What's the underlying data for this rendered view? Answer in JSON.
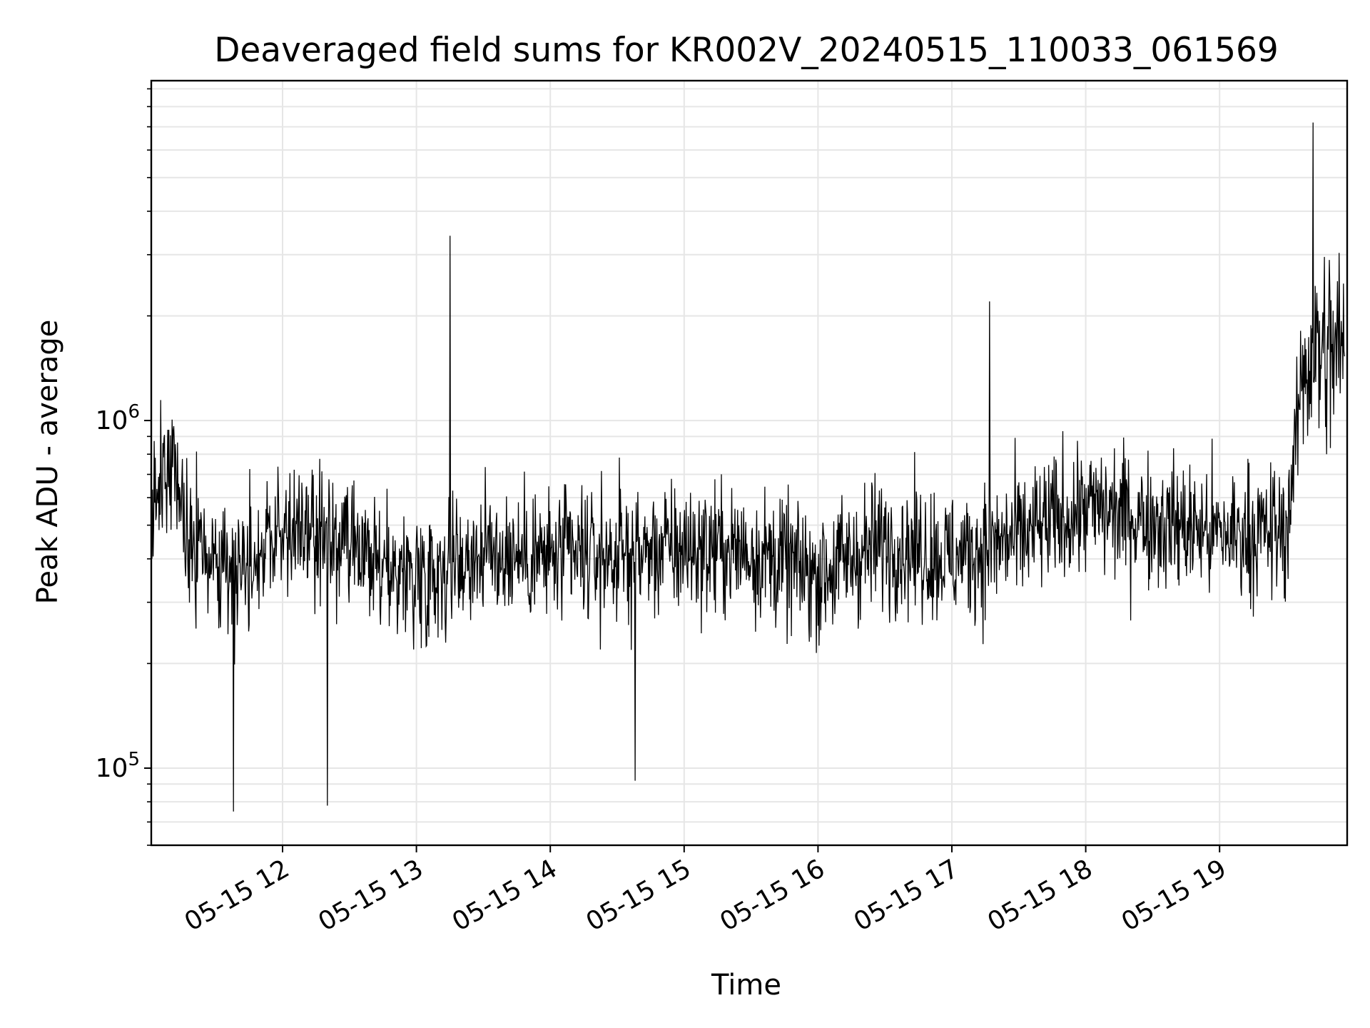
{
  "chart_data": {
    "type": "line",
    "title": "Deaveraged field sums for KR002V_20240515_110033_061569",
    "xlabel": "Time",
    "ylabel": "Peak ADU - average",
    "x_tick_labels": [
      "05-15 12",
      "05-15 13",
      "05-15 14",
      "05-15 15",
      "05-15 16",
      "05-15 17",
      "05-15 18",
      "05-15 19"
    ],
    "y_tick_labels": [
      {
        "base": "10",
        "exp": "5",
        "value": 100000
      },
      {
        "base": "10",
        "exp": "6",
        "value": 1000000
      }
    ],
    "yscale": "log",
    "ylim": [
      60000,
      9500000
    ],
    "xlim": [
      "2024-05-15 11:01",
      "2024-05-15 19:56"
    ],
    "grid": true,
    "line_color": "#000000",
    "series": [
      {
        "time_start": "2024-05-15 11:01",
        "time_end": "2024-05-15 19:56",
        "sample_count": 2200,
        "trend_samples": [
          {
            "time": "2024-05-15 11:01",
            "value": 600000
          },
          {
            "time": "2024-05-15 11:10",
            "value": 750000
          },
          {
            "time": "2024-05-15 11:20",
            "value": 420000
          },
          {
            "time": "2024-05-15 11:40",
            "value": 380000
          },
          {
            "time": "2024-05-15 12:00",
            "value": 480000
          },
          {
            "time": "2024-05-15 12:20",
            "value": 450000
          },
          {
            "time": "2024-05-15 12:40",
            "value": 380000
          },
          {
            "time": "2024-05-15 13:00",
            "value": 360000
          },
          {
            "time": "2024-05-15 13:30",
            "value": 420000
          },
          {
            "time": "2024-05-15 14:00",
            "value": 400000
          },
          {
            "time": "2024-05-15 14:30",
            "value": 410000
          },
          {
            "time": "2024-05-15 15:00",
            "value": 430000
          },
          {
            "time": "2024-05-15 15:30",
            "value": 420000
          },
          {
            "time": "2024-05-15 16:00",
            "value": 360000
          },
          {
            "time": "2024-05-15 16:30",
            "value": 450000
          },
          {
            "time": "2024-05-15 17:00",
            "value": 400000
          },
          {
            "time": "2024-05-15 17:30",
            "value": 460000
          },
          {
            "time": "2024-05-15 18:00",
            "value": 560000
          },
          {
            "time": "2024-05-15 18:30",
            "value": 520000
          },
          {
            "time": "2024-05-15 19:00",
            "value": 470000
          },
          {
            "time": "2024-05-15 19:30",
            "value": 480000
          },
          {
            "time": "2024-05-15 19:38",
            "value": 1500000
          },
          {
            "time": "2024-05-15 19:56",
            "value": 1600000
          }
        ],
        "notable_values": [
          {
            "time": "2024-05-15 11:38",
            "value": 75000
          },
          {
            "time": "2024-05-15 12:20",
            "value": 78000
          },
          {
            "time": "2024-05-15 13:15",
            "value": 3400000
          },
          {
            "time": "2024-05-15 14:38",
            "value": 92000
          },
          {
            "time": "2024-05-15 17:17",
            "value": 2200000
          },
          {
            "time": "2024-05-15 19:42",
            "value": 7200000
          }
        ]
      }
    ]
  }
}
